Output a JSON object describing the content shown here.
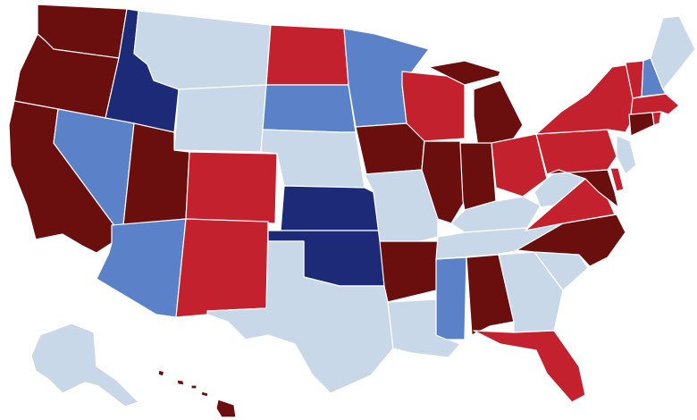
{
  "legend_colors": {
    "dark_red": "#6b0e0e",
    "red": "#c4212f",
    "light_blue": "#c9d8e8",
    "mid_blue": "#5b82c9",
    "navy": "#1c2a78"
  },
  "states": [
    {
      "id": "WA",
      "category": "dark_red"
    },
    {
      "id": "OR",
      "category": "dark_red"
    },
    {
      "id": "CA",
      "category": "dark_red"
    },
    {
      "id": "ID",
      "category": "navy"
    },
    {
      "id": "NV",
      "category": "mid_blue"
    },
    {
      "id": "MT",
      "category": "light_blue"
    },
    {
      "id": "WY",
      "category": "light_blue"
    },
    {
      "id": "UT",
      "category": "dark_red"
    },
    {
      "id": "AZ",
      "category": "mid_blue"
    },
    {
      "id": "CO",
      "category": "red"
    },
    {
      "id": "NM",
      "category": "red"
    },
    {
      "id": "ND",
      "category": "red"
    },
    {
      "id": "SD",
      "category": "mid_blue"
    },
    {
      "id": "NE",
      "category": "light_blue"
    },
    {
      "id": "KS",
      "category": "navy"
    },
    {
      "id": "OK",
      "category": "navy"
    },
    {
      "id": "TX",
      "category": "light_blue"
    },
    {
      "id": "MN",
      "category": "mid_blue"
    },
    {
      "id": "IA",
      "category": "dark_red"
    },
    {
      "id": "MO",
      "category": "light_blue"
    },
    {
      "id": "AR",
      "category": "dark_red"
    },
    {
      "id": "LA",
      "category": "light_blue"
    },
    {
      "id": "WI",
      "category": "red"
    },
    {
      "id": "MI",
      "category": "dark_red"
    },
    {
      "id": "IL",
      "category": "dark_red"
    },
    {
      "id": "IN",
      "category": "dark_red"
    },
    {
      "id": "OH",
      "category": "red"
    },
    {
      "id": "KY",
      "category": "light_blue"
    },
    {
      "id": "TN",
      "category": "light_blue"
    },
    {
      "id": "MS",
      "category": "mid_blue"
    },
    {
      "id": "AL",
      "category": "dark_red"
    },
    {
      "id": "GA",
      "category": "light_blue"
    },
    {
      "id": "FL",
      "category": "red"
    },
    {
      "id": "SC",
      "category": "light_blue"
    },
    {
      "id": "NC",
      "category": "dark_red"
    },
    {
      "id": "VA",
      "category": "red"
    },
    {
      "id": "WV",
      "category": "light_blue"
    },
    {
      "id": "PA",
      "category": "red"
    },
    {
      "id": "NY",
      "category": "red"
    },
    {
      "id": "MD",
      "category": "dark_red"
    },
    {
      "id": "DE",
      "category": "red"
    },
    {
      "id": "NJ",
      "category": "light_blue"
    },
    {
      "id": "CT",
      "category": "dark_red"
    },
    {
      "id": "RI",
      "category": "red"
    },
    {
      "id": "MA",
      "category": "red"
    },
    {
      "id": "VT",
      "category": "red"
    },
    {
      "id": "NH",
      "category": "mid_blue"
    },
    {
      "id": "ME",
      "category": "light_blue"
    },
    {
      "id": "AK",
      "category": "light_blue"
    },
    {
      "id": "HI",
      "category": "dark_red"
    }
  ]
}
